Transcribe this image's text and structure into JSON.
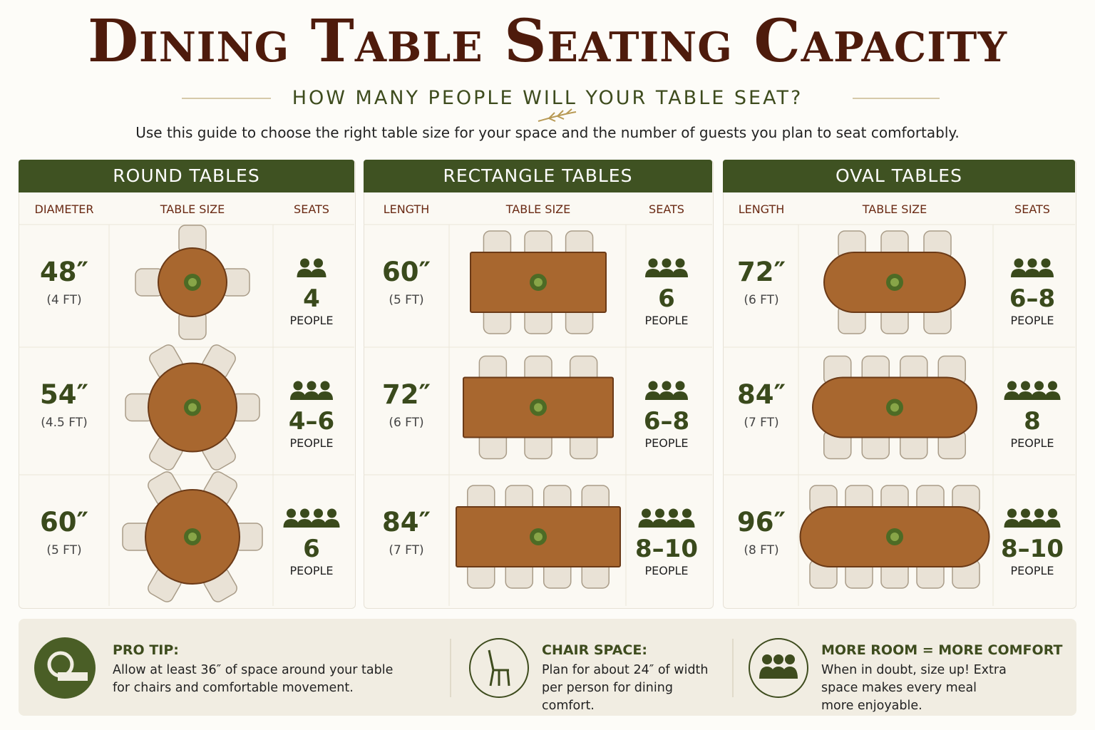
{
  "header": {
    "title": "Dining Table Seating Capacity",
    "subtitle": "HOW MANY PEOPLE WILL YOUR TABLE SEAT?",
    "intro": "Use this guide to choose the right table size for your space and the number of guests you plan to seat comfortably."
  },
  "sections": [
    {
      "title": "ROUND TABLES",
      "columns": [
        "DIAMETER",
        "TABLE SIZE",
        "SEATS"
      ],
      "rows": [
        {
          "size": "48″",
          "feet": "(4 FT)",
          "seats": "4",
          "unit": "PEOPLE"
        },
        {
          "size": "54″",
          "feet": "(4.5 FT)",
          "seats": "4–6",
          "unit": "PEOPLE"
        },
        {
          "size": "60″",
          "feet": "(5 FT)",
          "seats": "6",
          "unit": "PEOPLE"
        }
      ]
    },
    {
      "title": "RECTANGLE TABLES",
      "columns": [
        "LENGTH",
        "TABLE SIZE",
        "SEATS"
      ],
      "rows": [
        {
          "size": "60″",
          "feet": "(5 FT)",
          "seats": "6",
          "unit": "PEOPLE"
        },
        {
          "size": "72″",
          "feet": "(6 FT)",
          "seats": "6–8",
          "unit": "PEOPLE"
        },
        {
          "size": "84″",
          "feet": "(7 FT)",
          "seats": "8–10",
          "unit": "PEOPLE"
        }
      ]
    },
    {
      "title": "OVAL TABLES",
      "columns": [
        "LENGTH",
        "TABLE SIZE",
        "SEATS"
      ],
      "rows": [
        {
          "size": "72″",
          "feet": "(6 FT)",
          "seats": "6–8",
          "unit": "PEOPLE"
        },
        {
          "size": "84″",
          "feet": "(7 FT)",
          "seats": "8",
          "unit": "PEOPLE"
        },
        {
          "size": "96″",
          "feet": "(8 FT)",
          "seats": "8–10",
          "unit": "PEOPLE"
        }
      ]
    }
  ],
  "tips": [
    {
      "title": "PRO TIP:",
      "text": "Allow at least 36″ of space around your table for chairs and comfortable movement."
    },
    {
      "title": "CHAIR SPACE:",
      "text": "Plan for about 24″ of width per person for dining comfort."
    },
    {
      "title": "MORE ROOM = MORE COMFORT",
      "text": "When in doubt, size up! Extra space makes every meal more enjoyable."
    }
  ]
}
